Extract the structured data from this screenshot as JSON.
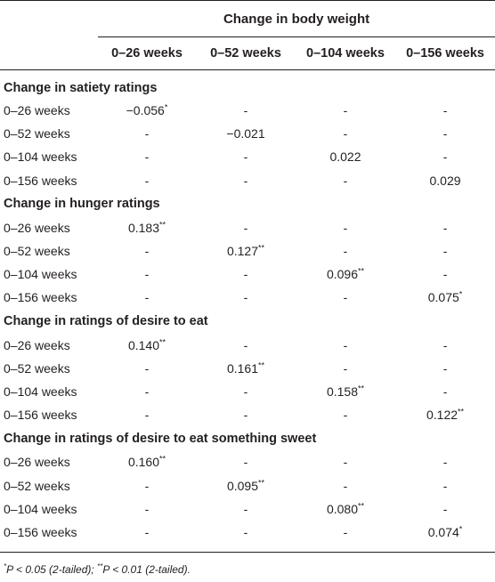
{
  "header": {
    "spanner": "Change in body weight",
    "columns": [
      "0–26 weeks",
      "0–52 weeks",
      "0–104 weeks",
      "0–156 weeks"
    ]
  },
  "sections": [
    {
      "title": "Change in satiety ratings",
      "rows": [
        {
          "label": "0–26 weeks",
          "cells": [
            {
              "v": "−0.056",
              "s": "*"
            },
            {
              "v": "-",
              "s": ""
            },
            {
              "v": "-",
              "s": ""
            },
            {
              "v": "-",
              "s": ""
            }
          ]
        },
        {
          "label": "0–52 weeks",
          "cells": [
            {
              "v": "-",
              "s": ""
            },
            {
              "v": "−0.021",
              "s": ""
            },
            {
              "v": "-",
              "s": ""
            },
            {
              "v": "-",
              "s": ""
            }
          ]
        },
        {
          "label": "0–104 weeks",
          "cells": [
            {
              "v": "-",
              "s": ""
            },
            {
              "v": "-",
              "s": ""
            },
            {
              "v": "0.022",
              "s": ""
            },
            {
              "v": "-",
              "s": ""
            }
          ]
        },
        {
          "label": "0–156 weeks",
          "cells": [
            {
              "v": "-",
              "s": ""
            },
            {
              "v": "-",
              "s": ""
            },
            {
              "v": "-",
              "s": ""
            },
            {
              "v": "0.029",
              "s": ""
            }
          ]
        }
      ]
    },
    {
      "title": "Change in hunger ratings",
      "rows": [
        {
          "label": "0–26 weeks",
          "cells": [
            {
              "v": "0.183",
              "s": "**"
            },
            {
              "v": "-",
              "s": ""
            },
            {
              "v": "-",
              "s": ""
            },
            {
              "v": "-",
              "s": ""
            }
          ]
        },
        {
          "label": "0–52 weeks",
          "cells": [
            {
              "v": "-",
              "s": ""
            },
            {
              "v": "0.127",
              "s": "**"
            },
            {
              "v": "-",
              "s": ""
            },
            {
              "v": "-",
              "s": ""
            }
          ]
        },
        {
          "label": "0–104 weeks",
          "cells": [
            {
              "v": "-",
              "s": ""
            },
            {
              "v": "-",
              "s": ""
            },
            {
              "v": "0.096",
              "s": "**"
            },
            {
              "v": "-",
              "s": ""
            }
          ]
        },
        {
          "label": "0–156 weeks",
          "cells": [
            {
              "v": "-",
              "s": ""
            },
            {
              "v": "-",
              "s": ""
            },
            {
              "v": "-",
              "s": ""
            },
            {
              "v": "0.075",
              "s": "*"
            }
          ]
        }
      ]
    },
    {
      "title": "Change in ratings of desire to eat",
      "rows": [
        {
          "label": "0–26 weeks",
          "cells": [
            {
              "v": "0.140",
              "s": "**"
            },
            {
              "v": "-",
              "s": ""
            },
            {
              "v": "-",
              "s": ""
            },
            {
              "v": "-",
              "s": ""
            }
          ]
        },
        {
          "label": "0–52 weeks",
          "cells": [
            {
              "v": "-",
              "s": ""
            },
            {
              "v": "0.161",
              "s": "**"
            },
            {
              "v": "-",
              "s": ""
            },
            {
              "v": "-",
              "s": ""
            }
          ]
        },
        {
          "label": "0–104 weeks",
          "cells": [
            {
              "v": "-",
              "s": ""
            },
            {
              "v": "-",
              "s": ""
            },
            {
              "v": "0.158",
              "s": "**"
            },
            {
              "v": "-",
              "s": ""
            }
          ]
        },
        {
          "label": "0–156 weeks",
          "cells": [
            {
              "v": "-",
              "s": ""
            },
            {
              "v": "-",
              "s": ""
            },
            {
              "v": "-",
              "s": ""
            },
            {
              "v": "0.122",
              "s": "**"
            }
          ]
        }
      ]
    },
    {
      "title": "Change in ratings of desire to eat something sweet",
      "rows": [
        {
          "label": "0–26 weeks",
          "cells": [
            {
              "v": "0.160",
              "s": "**"
            },
            {
              "v": "-",
              "s": ""
            },
            {
              "v": "-",
              "s": ""
            },
            {
              "v": "-",
              "s": ""
            }
          ]
        },
        {
          "label": "0–52 weeks",
          "cells": [
            {
              "v": "-",
              "s": ""
            },
            {
              "v": "0.095",
              "s": "**"
            },
            {
              "v": "-",
              "s": ""
            },
            {
              "v": "-",
              "s": ""
            }
          ]
        },
        {
          "label": "0–104 weeks",
          "cells": [
            {
              "v": "-",
              "s": ""
            },
            {
              "v": "-",
              "s": ""
            },
            {
              "v": "0.080",
              "s": "**"
            },
            {
              "v": "-",
              "s": ""
            }
          ]
        },
        {
          "label": "0–156 weeks",
          "cells": [
            {
              "v": "-",
              "s": ""
            },
            {
              "v": "-",
              "s": ""
            },
            {
              "v": "-",
              "s": ""
            },
            {
              "v": "0.074",
              "s": "*"
            }
          ]
        }
      ]
    }
  ],
  "footnote": {
    "mark1": "*",
    "text1": "P < 0.05 (2-tailed); ",
    "mark2": "**",
    "text2": "P < 0.01 (2-tailed)."
  }
}
